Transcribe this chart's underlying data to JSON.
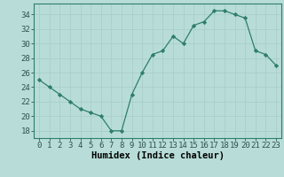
{
  "x": [
    0,
    1,
    2,
    3,
    4,
    5,
    6,
    7,
    8,
    9,
    10,
    11,
    12,
    13,
    14,
    15,
    16,
    17,
    18,
    19,
    20,
    21,
    22,
    23
  ],
  "y": [
    25,
    24,
    23,
    22,
    21,
    20.5,
    20,
    18,
    18,
    23,
    26,
    28.5,
    29,
    31,
    30,
    32.5,
    33,
    34.5,
    34.5,
    34,
    33.5,
    29,
    28.5,
    27
  ],
  "line_color": "#2e7d6e",
  "marker_color": "#2e7d6e",
  "bg_color": "#b8ddd8",
  "grid_color": "#c8e8e4",
  "xlabel": "Humidex (Indice chaleur)",
  "ylim": [
    17,
    35.5
  ],
  "xlim": [
    -0.5,
    23.5
  ],
  "yticks": [
    18,
    20,
    22,
    24,
    26,
    28,
    30,
    32,
    34
  ],
  "xticks": [
    0,
    1,
    2,
    3,
    4,
    5,
    6,
    7,
    8,
    9,
    10,
    11,
    12,
    13,
    14,
    15,
    16,
    17,
    18,
    19,
    20,
    21,
    22,
    23
  ],
  "label_fontsize": 7.5,
  "tick_fontsize": 6.5
}
